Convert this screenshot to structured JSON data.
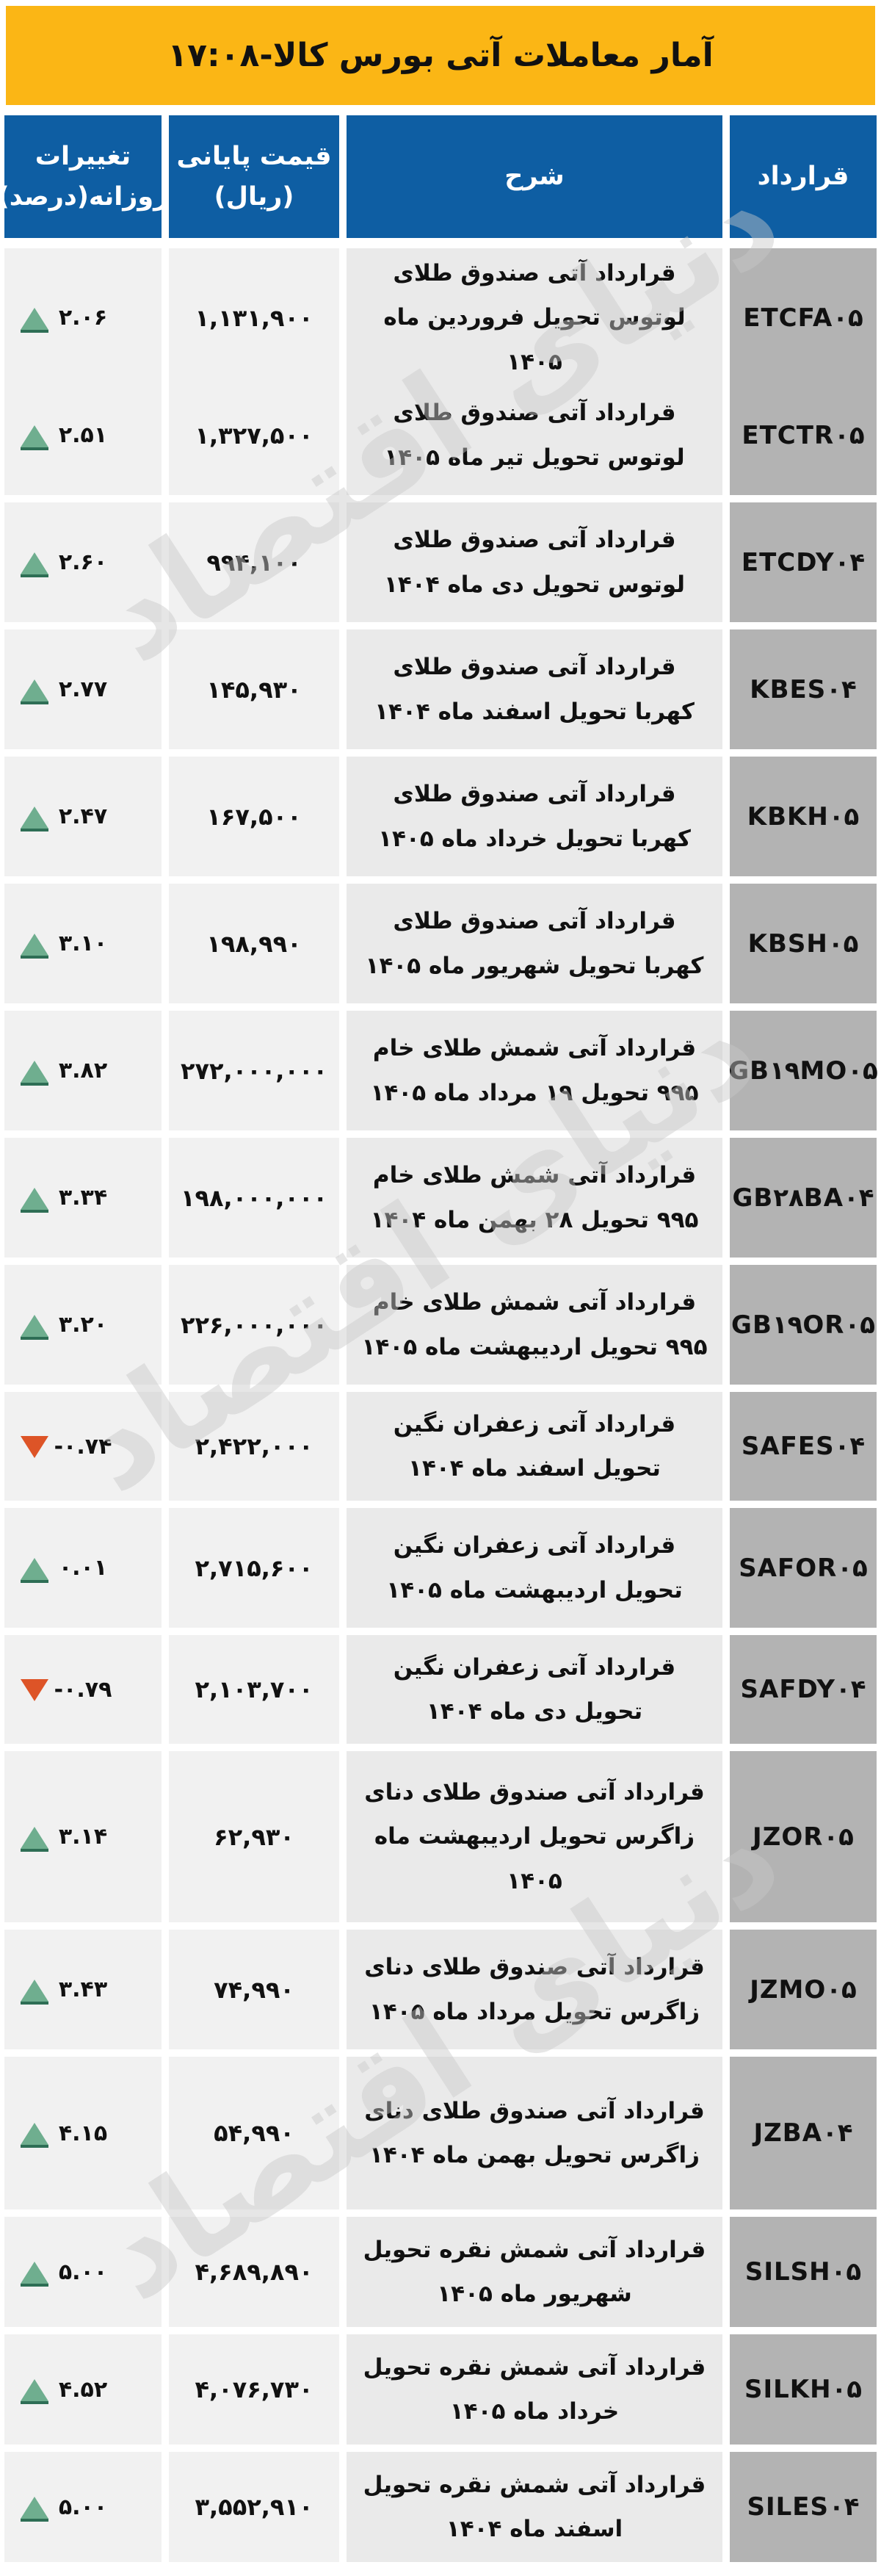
{
  "title": {
    "text": "آمار معاملات آتی بورس کالا-۱۷:۰۸",
    "time": "۱۷:۰۸"
  },
  "watermark": {
    "text": "دنیای اقتصاد"
  },
  "colors": {
    "title_bg": "#FBB615",
    "header_bg": "#0E5EA3",
    "contract_cell_bg": "#B3B3B3",
    "data_cell_bg": "#F1F1F1",
    "up_triangle": "#6FAE8F",
    "down_triangle": "#DD5427"
  },
  "chart_data": {
    "type": "table",
    "title": "آمار معاملات آتی بورس کالا-۱۷:۰۸",
    "columns": {
      "contract": "قرارداد",
      "description": "شرح",
      "closing_price": "قیمت پایانی\n(ریال)",
      "daily_change": "تغییرات\nروزانه(درصد)"
    },
    "rows": [
      {
        "code": "ETCFA۰۵",
        "description": "قرارداد آتی صندوق طلای لوتوس تحویل فروردین ماه ۱۴۰۵",
        "price_display": "۱,۱۳۱,۹۰۰",
        "price_value": 1131900,
        "change_display": "۲.۰۶",
        "change_value": 2.06,
        "direction": "up"
      },
      {
        "code": "ETCTR۰۵",
        "description": "قرارداد آتی صندوق طلای لوتوس تحویل تیر ماه ۱۴۰۵",
        "price_display": "۱,۳۲۷,۵۰۰",
        "price_value": 1327500,
        "change_display": "۲.۵۱",
        "change_value": 2.51,
        "direction": "up"
      },
      {
        "code": "ETCDY۰۴",
        "description": "قرارداد آتی صندوق طلای لوتوس تحویل دی ماه ۱۴۰۴",
        "price_display": "۹۹۴,۱۰۰",
        "price_value": 994100,
        "change_display": "۲.۶۰",
        "change_value": 2.6,
        "direction": "up"
      },
      {
        "code": "KBES۰۴",
        "description": "قرارداد آتی صندوق طلای کهربا تحویل اسفند ماه ۱۴۰۴",
        "price_display": "۱۴۵,۹۳۰",
        "price_value": 145930,
        "change_display": "۲.۷۷",
        "change_value": 2.77,
        "direction": "up"
      },
      {
        "code": "KBKH۰۵",
        "description": "قرارداد آتی صندوق طلای کهربا تحویل خرداد ماه ۱۴۰۵",
        "price_display": "۱۶۷,۵۰۰",
        "price_value": 167500,
        "change_display": "۲.۴۷",
        "change_value": 2.47,
        "direction": "up"
      },
      {
        "code": "KBSH۰۵",
        "description": "قرارداد آتی صندوق طلای کهربا تحویل شهریور ماه ۱۴۰۵",
        "price_display": "۱۹۸,۹۹۰",
        "price_value": 198990,
        "change_display": "۳.۱۰",
        "change_value": 3.1,
        "direction": "up"
      },
      {
        "code": "GB۱۹MO۰۵",
        "description": "قرارداد آتی شمش طلای خام ۹۹۵ تحویل ۱۹ مرداد ماه ۱۴۰۵",
        "price_display": "۲۷۲,۰۰۰,۰۰۰",
        "price_value": 272000000,
        "change_display": "۳.۸۲",
        "change_value": 3.82,
        "direction": "up"
      },
      {
        "code": "GB۲۸BA۰۴",
        "description": "قرارداد آتی شمش طلای خام ۹۹۵ تحویل ۲۸ بهمن ماه ۱۴۰۴",
        "price_display": "۱۹۸,۰۰۰,۰۰۰",
        "price_value": 198000000,
        "change_display": "۳.۳۴",
        "change_value": 3.34,
        "direction": "up"
      },
      {
        "code": "GB۱۹OR۰۵",
        "description": "قرارداد آتی شمش طلای خام ۹۹۵ تحویل اردیبهشت ماه ۱۴۰۵",
        "price_display": "۲۲۶,۰۰۰,۰۰۰",
        "price_value": 226000000,
        "change_display": "۳.۲۰",
        "change_value": 3.2,
        "direction": "up"
      },
      {
        "code": "SAFES۰۴",
        "description": "قرارداد آتی زعفران نگین تحویل اسفند ماه ۱۴۰۴",
        "price_display": "۲,۴۲۲,۰۰۰",
        "price_value": 2422000,
        "change_display": "-۰.۷۴",
        "change_value": -0.74,
        "direction": "down"
      },
      {
        "code": "SAFOR۰۵",
        "description": "قرارداد آتی زعفران نگین تحویل اردیبهشت ماه ۱۴۰۵",
        "price_display": "۲,۷۱۵,۶۰۰",
        "price_value": 2715600,
        "change_display": "۰.۰۱",
        "change_value": 0.01,
        "direction": "up"
      },
      {
        "code": "SAFDY۰۴",
        "description": "قرارداد آتی زعفران نگین تحویل دی ماه ۱۴۰۴",
        "price_display": "۲,۱۰۳,۷۰۰",
        "price_value": 2103700,
        "change_display": "-۰.۷۹",
        "change_value": -0.79,
        "direction": "down"
      },
      {
        "code": "JZOR۰۵",
        "description": "قرارداد آتی صندوق طلای دنای زاگرس تحویل اردیبهشت ماه ۱۴۰۵",
        "price_display": "۶۲,۹۳۰",
        "price_value": 62930,
        "change_display": "۳.۱۴",
        "change_value": 3.14,
        "direction": "up"
      },
      {
        "code": "JZMO۰۵",
        "description": "قرارداد آتی صندوق طلای دنای زاگرس تحویل مرداد ماه ۱۴۰۵",
        "price_display": "۷۴,۹۹۰",
        "price_value": 74990,
        "change_display": "۳.۴۳",
        "change_value": 3.43,
        "direction": "up"
      },
      {
        "code": "JZBA۰۴",
        "description": "قرارداد آتی صندوق طلای دنای زاگرس تحویل بهمن ماه ۱۴۰۴",
        "price_display": "۵۴,۹۹۰",
        "price_value": 54990,
        "change_display": "۴.۱۵",
        "change_value": 4.15,
        "direction": "up"
      },
      {
        "code": "SILSH۰۵",
        "description": "قرارداد آتی شمش نقره تحویل شهریور ماه ۱۴۰۵",
        "price_display": "۴,۶۸۹,۸۹۰",
        "price_value": 4689890,
        "change_display": "۵.۰۰",
        "change_value": 5.0,
        "direction": "up"
      },
      {
        "code": "SILKH۰۵",
        "description": "قرارداد آتی شمش نقره تحویل خرداد ماه ۱۴۰۵",
        "price_display": "۴,۰۷۶,۷۳۰",
        "price_value": 4076730,
        "change_display": "۴.۵۲",
        "change_value": 4.52,
        "direction": "up"
      },
      {
        "code": "SILES۰۴",
        "description": "قرارداد آتی شمش نقره تحویل اسفند ماه ۱۴۰۴",
        "price_display": "۳,۵۵۲,۹۱۰",
        "price_value": 3552910,
        "change_display": "۵.۰۰",
        "change_value": 5.0,
        "direction": "up"
      }
    ]
  }
}
